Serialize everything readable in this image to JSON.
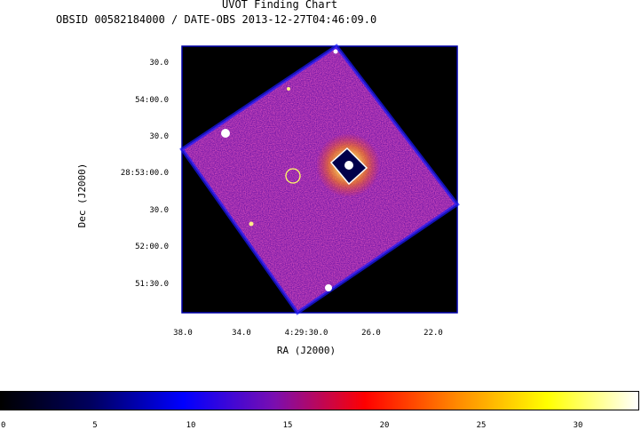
{
  "header": {
    "title": "UVOT Finding Chart",
    "subtitle": "OBSID 00582184000 / DATE-OBS 2013-12-27T04:46:09.0"
  },
  "image": {
    "dec_ticks": [
      "30.0",
      "54:00.0",
      "30.0",
      "28:53:00.0",
      "30.0",
      "52:00.0",
      "51:30.0"
    ],
    "ra_ticks": [
      "38.0",
      "34.0",
      "4:29:30.0",
      "26.0",
      "22.0"
    ],
    "xlabel": "RA (J2000)",
    "ylabel": "Dec (J2000)",
    "colors": {
      "background": "#000000",
      "frame": "#0000aa",
      "target_marker": "#ffff66"
    }
  },
  "colorbar": {
    "ticks": [
      "0",
      "5",
      "10",
      "15",
      "20",
      "25",
      "30"
    ],
    "stops": [
      "#000000",
      "#000060",
      "#0000ff",
      "#7a0eb0",
      "#ff0000",
      "#ff8800",
      "#ffff00",
      "#ffffff"
    ]
  }
}
